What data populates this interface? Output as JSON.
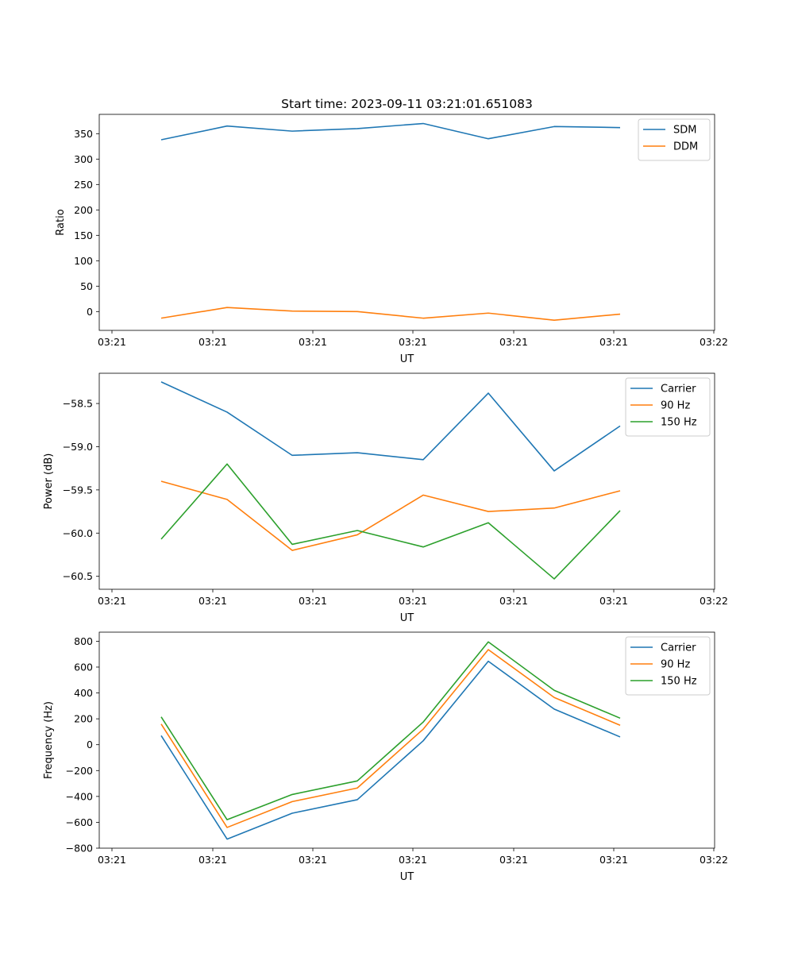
{
  "chart_data": [
    {
      "type": "line",
      "title": "Start time: 2023-09-11 03:21:01.651083",
      "xlabel": "UT",
      "ylabel": "Ratio",
      "x_tick_labels": [
        "03:21",
        "03:21",
        "03:21",
        "03:21",
        "03:21",
        "03:21",
        "03:22"
      ],
      "ylim": [
        -37,
        388
      ],
      "y_ticks": [
        0,
        50,
        100,
        150,
        200,
        250,
        300,
        350
      ],
      "legend_position": "upper right",
      "series": [
        {
          "name": "SDM",
          "color": "#1f77b4",
          "values": [
            338,
            365,
            355,
            360,
            370,
            340,
            364,
            362
          ]
        },
        {
          "name": "DDM",
          "color": "#ff7f0e",
          "values": [
            -13,
            8,
            1,
            0,
            -13,
            -3,
            -17,
            -5
          ]
        }
      ]
    },
    {
      "type": "line",
      "title": "",
      "xlabel": "UT",
      "ylabel": "Power (dB)",
      "x_tick_labels": [
        "03:21",
        "03:21",
        "03:21",
        "03:21",
        "03:21",
        "03:21",
        "03:22"
      ],
      "ylim": [
        -60.65,
        -58.15
      ],
      "y_ticks": [
        -60.5,
        -60.0,
        -59.5,
        -59.0,
        -58.5
      ],
      "y_tick_labels": [
        "−60.5",
        "−60.0",
        "−59.5",
        "−59.0",
        "−58.5"
      ],
      "legend_position": "upper right",
      "series": [
        {
          "name": "Carrier",
          "color": "#1f77b4",
          "values": [
            -58.25,
            -58.6,
            -59.1,
            -59.07,
            -59.15,
            -58.38,
            -59.28,
            -58.76
          ]
        },
        {
          "name": "90 Hz",
          "color": "#ff7f0e",
          "values": [
            -59.4,
            -59.61,
            -60.2,
            -60.02,
            -59.56,
            -59.75,
            -59.71,
            -59.51
          ]
        },
        {
          "name": "150 Hz",
          "color": "#2ca02c",
          "values": [
            -60.07,
            -59.2,
            -60.13,
            -59.97,
            -60.16,
            -59.88,
            -60.53,
            -59.74
          ]
        }
      ]
    },
    {
      "type": "line",
      "title": "",
      "xlabel": "UT",
      "ylabel": "Frequency (Hz)",
      "x_tick_labels": [
        "03:21",
        "03:21",
        "03:21",
        "03:21",
        "03:21",
        "03:21",
        "03:22"
      ],
      "ylim": [
        -800,
        870
      ],
      "y_ticks": [
        -800,
        -600,
        -400,
        -200,
        0,
        200,
        400,
        600,
        800
      ],
      "y_tick_labels": [
        "−800",
        "−600",
        "−400",
        "−200",
        "0",
        "200",
        "400",
        "600",
        "800"
      ],
      "legend_position": "upper right",
      "series": [
        {
          "name": "Carrier",
          "color": "#1f77b4",
          "values": [
            70,
            -730,
            -530,
            -425,
            30,
            645,
            275,
            60
          ]
        },
        {
          "name": "90 Hz",
          "color": "#ff7f0e",
          "values": [
            160,
            -640,
            -440,
            -335,
            120,
            735,
            365,
            150
          ]
        },
        {
          "name": "150 Hz",
          "color": "#2ca02c",
          "values": [
            215,
            -580,
            -385,
            -280,
            175,
            795,
            420,
            205
          ]
        }
      ]
    }
  ]
}
